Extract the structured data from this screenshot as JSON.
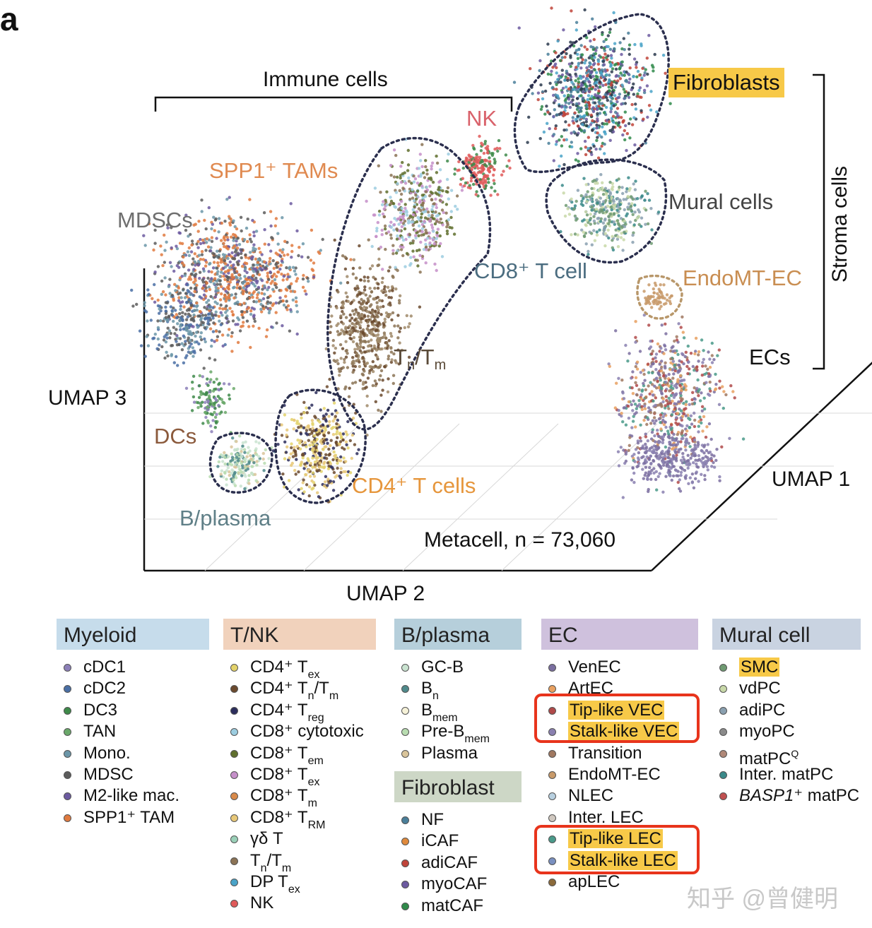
{
  "panel_letter": "a",
  "colors": {
    "myeloid_header": "#c6dceb",
    "tnk_header": "#f1d2bc",
    "bplasma_header": "#b6cfdb",
    "ec_header": "#cfc1dd",
    "mural_header": "#c9d3e1",
    "fibroblast_header": "#cdd7c6",
    "highlight": "#f7c948",
    "red_box": "#e8341c"
  },
  "chart_data": {
    "type": "scatter",
    "title": "",
    "xlabel": "UMAP 2",
    "ylabel": "UMAP 3",
    "zlabel": "UMAP 1",
    "annotation": "Metacell, n = 73,060",
    "group_brackets": [
      "Immune cells",
      "Stroma cells"
    ],
    "cluster_labels": [
      {
        "name": "NK",
        "color": "#d9626b"
      },
      {
        "name": "SPP1⁺ TAMs",
        "color": "#e08a50"
      },
      {
        "name": "MDSCs",
        "color": "#6e6e6e"
      },
      {
        "name": "CD8⁺ T cell",
        "color": "#4b6d80"
      },
      {
        "name": "Tn/Tm",
        "color": "#5a4a38"
      },
      {
        "name": "DCs",
        "color": "#8b5a3c"
      },
      {
        "name": "CD4⁺ T cells",
        "color": "#e6963c"
      },
      {
        "name": "B/plasma",
        "color": "#5f7f87"
      },
      {
        "name": "Fibroblasts",
        "color": "#222222"
      },
      {
        "name": "Mural cells",
        "color": "#444444"
      },
      {
        "name": "EndoMT-EC",
        "color": "#c98e52"
      },
      {
        "name": "ECs",
        "color": "#222222"
      }
    ]
  },
  "legend": {
    "myeloid": {
      "header": "Myeloid",
      "items": [
        {
          "label": "cDC1",
          "color": "#8c7fb8"
        },
        {
          "label": "cDC2",
          "color": "#4a6fa5"
        },
        {
          "label": "DC3",
          "color": "#3e8a4a"
        },
        {
          "label": "TAN",
          "color": "#6aa86a"
        },
        {
          "label": "Mono.",
          "color": "#6b96a8"
        },
        {
          "label": "MDSC",
          "color": "#5c5c5c"
        },
        {
          "label": "M2-like mac.",
          "color": "#6c5aa0"
        },
        {
          "label": "SPP1⁺ TAM",
          "color": "#e07a3f"
        }
      ]
    },
    "tnk": {
      "header": "T/NK",
      "items": [
        {
          "label": "CD4⁺ T",
          "sub": "ex",
          "color": "#e3d26a"
        },
        {
          "label": "CD4⁺ T",
          "sub": "n",
          "mid": "/T",
          "sub2": "m",
          "color": "#6b4a2e"
        },
        {
          "label": "CD4⁺ T",
          "sub": "reg",
          "color": "#2b2d5c"
        },
        {
          "label": "CD8⁺ cytotoxic",
          "color": "#9ccde0"
        },
        {
          "label": "CD8⁺ T",
          "sub": "em",
          "color": "#5f6f2d"
        },
        {
          "label": "CD8⁺ T",
          "sub": "ex",
          "color": "#c58fc9"
        },
        {
          "label": "CD8⁺ T",
          "sub": "m",
          "color": "#d98a4a"
        },
        {
          "label": "CD8⁺ T",
          "sub": "RM",
          "color": "#e8c878"
        },
        {
          "label": "γδ T",
          "color": "#9ad0b8"
        },
        {
          "label": "T",
          "sub": "n",
          "mid": "/T",
          "sub2": "m",
          "color": "#8b7355"
        },
        {
          "label": "DP T",
          "sub": "ex",
          "color": "#4aa3c8"
        },
        {
          "label": "NK",
          "color": "#e05a5a"
        }
      ]
    },
    "bplasma": {
      "header": "B/plasma",
      "items": [
        {
          "label": "GC-B",
          "color": "#c9e3d0"
        },
        {
          "label": "B",
          "sub": "n",
          "color": "#4f8a8b"
        },
        {
          "label": "B",
          "sub": "mem",
          "color": "#f6f2d8"
        },
        {
          "label": "Pre-B",
          "sub": "mem",
          "color": "#b8dcb0"
        },
        {
          "label": "Plasma",
          "color": "#d9c49a"
        }
      ]
    },
    "fibroblast": {
      "header": "Fibroblast",
      "items": [
        {
          "label": "NF",
          "color": "#4a7f9a"
        },
        {
          "label": "iCAF",
          "color": "#e08a3c"
        },
        {
          "label": "adiCAF",
          "color": "#c0443a"
        },
        {
          "label": "myoCAF",
          "color": "#6c5aa0"
        },
        {
          "label": "matCAF",
          "color": "#2f8a4a"
        }
      ]
    },
    "ec": {
      "header": "EC",
      "items": [
        {
          "label": "VenEC",
          "color": "#7b6fa0"
        },
        {
          "label": "ArtEC",
          "color": "#e8a060"
        },
        {
          "label": "Tip-like VEC",
          "color": "#b04a4a",
          "highlight": true
        },
        {
          "label": "Stalk-like VEC",
          "color": "#8a80b0",
          "highlight": true
        },
        {
          "label": "Transition",
          "color": "#a07860"
        },
        {
          "label": "EndoMT-EC",
          "color": "#c89a6a"
        },
        {
          "label": "NLEC",
          "color": "#b8d0e0"
        },
        {
          "label": "Inter. LEC",
          "color": "#d0c8c0"
        },
        {
          "label": "Tip-like LEC",
          "color": "#4a9a8a",
          "highlight": true
        },
        {
          "label": "Stalk-like LEC",
          "color": "#7a90c0",
          "highlight": true
        },
        {
          "label": "apLEC",
          "color": "#8b6a3a"
        }
      ]
    },
    "mural": {
      "header": "Mural cell",
      "items": [
        {
          "label": "SMC",
          "color": "#6f9a72",
          "highlight": true
        },
        {
          "label": "vdPC",
          "color": "#c8d8a8"
        },
        {
          "label": "adiPC",
          "color": "#8aa0b0"
        },
        {
          "label": "myoPC",
          "color": "#8a8a8a"
        },
        {
          "label": "matPC",
          "sup": "Q",
          "color": "#b08878"
        },
        {
          "label": "Inter. matPC",
          "color": "#3a8a8a"
        },
        {
          "label": "BASP1",
          "italic": true,
          "tail": "⁺ matPC",
          "color": "#c05050"
        }
      ]
    }
  },
  "watermark": "知乎 @曾健明"
}
